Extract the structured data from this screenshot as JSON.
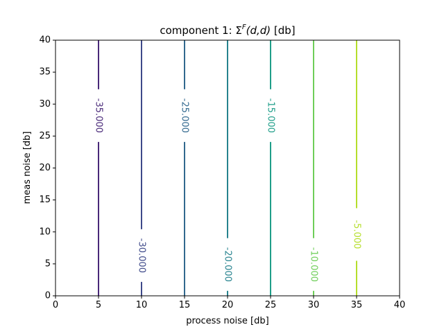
{
  "chart_data": {
    "type": "contour",
    "title_main": "component 1: Σ",
    "title_superscript": "F",
    "title_args": "(d,d)",
    "title_suffix": " [db]",
    "xlabel": "process noise [db]",
    "ylabel": "meas noise [db]",
    "xlim": [
      0,
      40
    ],
    "ylim": [
      0,
      40
    ],
    "xticks": [
      0,
      5,
      10,
      15,
      20,
      25,
      30,
      35,
      40
    ],
    "yticks": [
      0,
      5,
      10,
      15,
      20,
      25,
      30,
      35,
      40
    ],
    "grid": false,
    "levels": [
      {
        "x": 5,
        "label": "-35.000",
        "label_y": 28.2,
        "color": "#482878"
      },
      {
        "x": 10,
        "label": "-30.000",
        "label_y": 6.3,
        "color": "#3e4989"
      },
      {
        "x": 15,
        "label": "-25.000",
        "label_y": 28.2,
        "color": "#31688e"
      },
      {
        "x": 20,
        "label": "-20.000",
        "label_y": 4.9,
        "color": "#26828e"
      },
      {
        "x": 25,
        "label": "-15.000",
        "label_y": 28.2,
        "color": "#1f9e89"
      },
      {
        "x": 30,
        "label": "-10.000",
        "label_y": 4.9,
        "color": "#6ece58"
      },
      {
        "x": 35,
        "label": "-5.000",
        "label_y": 9.6,
        "color": "#b5de2b"
      }
    ]
  }
}
